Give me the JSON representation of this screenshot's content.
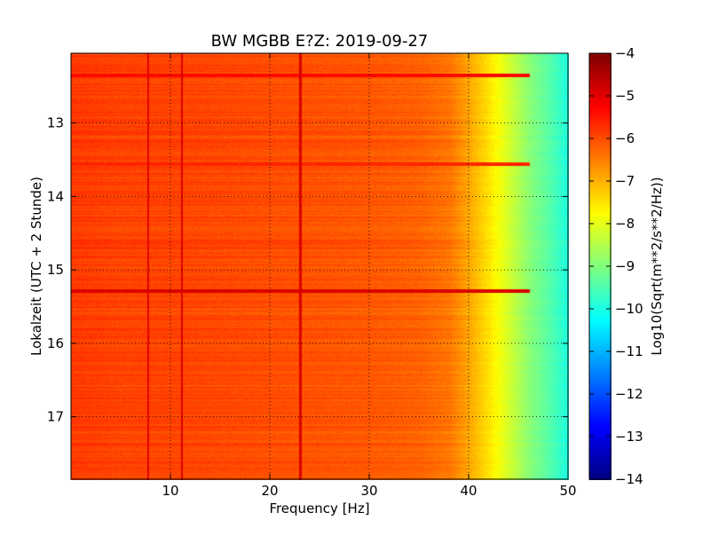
{
  "chart_data": {
    "type": "heatmap",
    "title": "BW MGBB E?Z: 2019-09-27",
    "xlabel": "Frequency [Hz]",
    "ylabel": "Lokalzeit (UTC + 2 Stunde)",
    "xlim": [
      0,
      50
    ],
    "ylim": [
      12.05,
      17.85
    ],
    "y_inverted": true,
    "x_ticks": [
      10,
      20,
      30,
      40,
      50
    ],
    "x_tick_labels": [
      "10",
      "20",
      "30",
      "40",
      "50"
    ],
    "y_ticks": [
      13,
      14,
      15,
      16,
      17
    ],
    "y_tick_labels": [
      "13",
      "14",
      "15",
      "16",
      "17"
    ],
    "grid": true,
    "colormap": "jet",
    "colorbar": {
      "label": "Log10(Sqrt(m**2/s**2/Hz))",
      "range": [
        -14,
        -4
      ],
      "ticks": [
        -4,
        -5,
        -6,
        -7,
        -8,
        -9,
        -10,
        -11,
        -12,
        -13,
        -14
      ],
      "tick_labels": [
        "−4",
        "−5",
        "−6",
        "−7",
        "−8",
        "−9",
        "−10",
        "−11",
        "−12",
        "−13",
        "−14"
      ]
    },
    "frequency_profile": {
      "freq_hz": [
        0,
        5,
        10,
        20,
        30,
        35,
        38,
        40,
        42,
        44,
        46,
        48,
        50
      ],
      "level": [
        -5.8,
        -5.9,
        -5.9,
        -6.0,
        -6.1,
        -6.2,
        -6.4,
        -6.9,
        -7.5,
        -8.2,
        -8.9,
        -9.4,
        -10.0
      ]
    },
    "line_features": {
      "freq_hz": [
        7.7,
        11.1,
        23.0
      ],
      "level": [
        -5.0,
        -4.9,
        -4.9
      ]
    },
    "band_features": {
      "time_h": [
        12.35,
        13.55,
        15.28
      ],
      "level": [
        -5.3,
        -5.6,
        -4.9
      ]
    }
  }
}
